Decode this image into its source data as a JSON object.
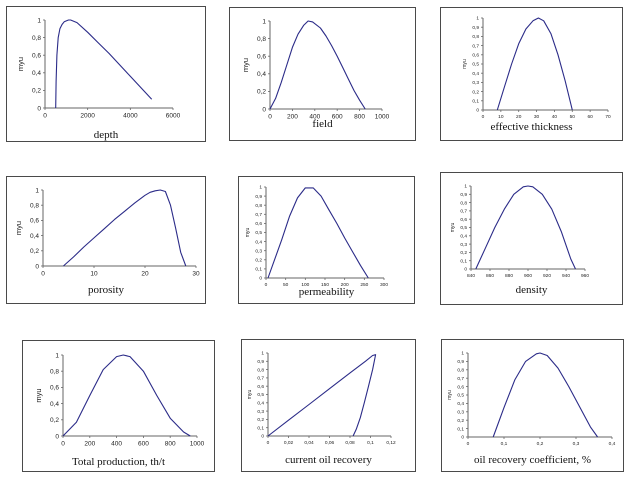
{
  "chart_data": [
    {
      "type": "line",
      "title": "",
      "xlabel": "depth",
      "ylabel": "myu",
      "xlim": [
        0,
        6000
      ],
      "ylim": [
        0,
        1
      ],
      "x_ticks": [
        "0",
        "2000",
        "4000",
        "6000"
      ],
      "y_ticks": [
        "0",
        "0,2",
        "0,4",
        "0,6",
        "0,8",
        "1"
      ],
      "series": [
        {
          "x": [
            500,
            520,
            560,
            620,
            700,
            800,
            900,
            1000,
            1100,
            1200,
            1500,
            2000,
            2500,
            3000,
            3500,
            4000,
            4500,
            5000
          ],
          "y": [
            0,
            0.3,
            0.6,
            0.8,
            0.9,
            0.95,
            0.98,
            0.99,
            1,
            1,
            0.97,
            0.86,
            0.74,
            0.62,
            0.49,
            0.36,
            0.23,
            0.1
          ]
        }
      ]
    },
    {
      "type": "line",
      "title": "",
      "xlabel": "field",
      "ylabel": "myu",
      "xlim": [
        0,
        1000
      ],
      "ylim": [
        0,
        1
      ],
      "x_ticks": [
        "0",
        "200",
        "400",
        "600",
        "800",
        "1000"
      ],
      "y_ticks": [
        "0",
        "0,2",
        "0,4",
        "0,6",
        "0,8",
        "1"
      ],
      "series": [
        {
          "x": [
            0,
            50,
            100,
            150,
            200,
            250,
            300,
            340,
            380,
            450,
            500,
            550,
            600,
            650,
            700,
            750,
            800,
            850
          ],
          "y": [
            0,
            0.12,
            0.3,
            0.5,
            0.7,
            0.85,
            0.95,
            1,
            0.99,
            0.92,
            0.83,
            0.72,
            0.6,
            0.47,
            0.34,
            0.21,
            0.1,
            0
          ]
        }
      ]
    },
    {
      "type": "line",
      "title": "",
      "xlabel": "effective thickness",
      "ylabel": "myu",
      "xlim": [
        0,
        70
      ],
      "ylim": [
        0,
        1
      ],
      "x_ticks": [
        "0",
        "10",
        "20",
        "30",
        "40",
        "50",
        "60",
        "70"
      ],
      "y_ticks": [
        "0",
        "0,1",
        "0,2",
        "0,3",
        "0,4",
        "0,5",
        "0,6",
        "0,7",
        "0,8",
        "0,9",
        "1"
      ],
      "series": [
        {
          "x": [
            8,
            12,
            16,
            20,
            24,
            28,
            31,
            34,
            38,
            42,
            46,
            50
          ],
          "y": [
            0,
            0.25,
            0.5,
            0.72,
            0.88,
            0.97,
            1,
            0.97,
            0.83,
            0.6,
            0.32,
            0
          ]
        }
      ]
    },
    {
      "type": "line",
      "title": "",
      "xlabel": "porosity",
      "ylabel": "myu",
      "xlim": [
        0,
        30
      ],
      "ylim": [
        0,
        1
      ],
      "x_ticks": [
        "0",
        "10",
        "20",
        "30"
      ],
      "y_ticks": [
        "0",
        "0,2",
        "0,4",
        "0,6",
        "0,8",
        "1"
      ],
      "series": [
        {
          "x": [
            4,
            6,
            8,
            10,
            12,
            14,
            16,
            18,
            20,
            21,
            22,
            23,
            24,
            25,
            26,
            27,
            28
          ],
          "y": [
            0,
            0.12,
            0.25,
            0.37,
            0.49,
            0.61,
            0.72,
            0.83,
            0.93,
            0.97,
            0.99,
            1,
            0.98,
            0.8,
            0.5,
            0.18,
            0
          ]
        }
      ]
    },
    {
      "type": "line",
      "title": "",
      "xlabel": "permeability",
      "ylabel": "myu",
      "xlim": [
        0,
        300
      ],
      "ylim": [
        0,
        1
      ],
      "x_ticks": [
        "0",
        "50",
        "100",
        "150",
        "200",
        "250",
        "300"
      ],
      "y_ticks": [
        "0",
        "0,1",
        "0,2",
        "0,3",
        "0,4",
        "0,5",
        "0,6",
        "0,7",
        "0,8",
        "0,9",
        "1"
      ],
      "series": [
        {
          "x": [
            5,
            20,
            40,
            60,
            80,
            100,
            120,
            140,
            160,
            180,
            200,
            220,
            240,
            260
          ],
          "y": [
            0,
            0.18,
            0.42,
            0.68,
            0.88,
            0.99,
            0.99,
            0.9,
            0.75,
            0.6,
            0.44,
            0.29,
            0.14,
            0
          ]
        }
      ]
    },
    {
      "type": "line",
      "title": "",
      "xlabel": "density",
      "ylabel": "myu",
      "xlim": [
        840,
        960
      ],
      "ylim": [
        0,
        1
      ],
      "x_ticks": [
        "840",
        "860",
        "880",
        "900",
        "920",
        "940",
        "960"
      ],
      "y_ticks": [
        "0",
        "0,1",
        "0,2",
        "0,3",
        "0,4",
        "0,5",
        "0,6",
        "0,7",
        "0,8",
        "0,9",
        "1"
      ],
      "series": [
        {
          "x": [
            845,
            855,
            865,
            875,
            885,
            895,
            900,
            905,
            915,
            925,
            935,
            945,
            950
          ],
          "y": [
            0,
            0.25,
            0.5,
            0.72,
            0.9,
            0.99,
            1,
            0.99,
            0.9,
            0.72,
            0.45,
            0.12,
            0
          ]
        }
      ]
    },
    {
      "type": "line",
      "title": "",
      "xlabel": "Total  production, th/t",
      "ylabel": "myu",
      "xlim": [
        0,
        1000
      ],
      "ylim": [
        0,
        1
      ],
      "x_ticks": [
        "0",
        "200",
        "400",
        "600",
        "800",
        "1000"
      ],
      "y_ticks": [
        "0",
        "0,2",
        "0,4",
        "0,6",
        "0,8",
        "1"
      ],
      "series": [
        {
          "x": [
            0,
            100,
            200,
            300,
            400,
            450,
            500,
            600,
            700,
            800,
            900,
            950
          ],
          "y": [
            0,
            0.17,
            0.5,
            0.82,
            0.98,
            1,
            0.98,
            0.8,
            0.5,
            0.22,
            0.05,
            0
          ]
        }
      ]
    },
    {
      "type": "line",
      "title": "",
      "xlabel": "current oil recovery",
      "ylabel": "myu",
      "xlim": [
        0,
        0.12
      ],
      "ylim": [
        0,
        1
      ],
      "x_ticks": [
        "0",
        "0,02",
        "0,04",
        "0,06",
        "0,08",
        "0,1",
        "0,12"
      ],
      "y_ticks": [
        "0",
        "0,1",
        "0,2",
        "0,3",
        "0,4",
        "0,5",
        "0,6",
        "0,7",
        "0,8",
        "0,9",
        "1"
      ],
      "series": [
        {
          "x": [
            0,
            0.02,
            0.04,
            0.06,
            0.08,
            0.095,
            0.102,
            0.105,
            0.102,
            0.098,
            0.094,
            0.09,
            0.086,
            0.083
          ],
          "y": [
            0,
            0.19,
            0.38,
            0.57,
            0.76,
            0.9,
            0.97,
            0.98,
            0.8,
            0.6,
            0.4,
            0.22,
            0.08,
            0
          ]
        }
      ]
    },
    {
      "type": "line",
      "title": "",
      "xlabel": "oil recovery coefficient, %",
      "ylabel": "myu",
      "xlim": [
        0,
        0.4
      ],
      "ylim": [
        0,
        1
      ],
      "x_ticks": [
        "0",
        "0,1",
        "0,2",
        "0,3",
        "0,4"
      ],
      "y_ticks": [
        "0",
        "0,1",
        "0,2",
        "0,3",
        "0,4",
        "0,5",
        "0,6",
        "0,7",
        "0,8",
        "0,9",
        "1"
      ],
      "series": [
        {
          "x": [
            0.07,
            0.1,
            0.13,
            0.16,
            0.19,
            0.2,
            0.22,
            0.25,
            0.28,
            0.31,
            0.34,
            0.36
          ],
          "y": [
            0,
            0.35,
            0.68,
            0.9,
            0.99,
            1,
            0.97,
            0.82,
            0.6,
            0.36,
            0.12,
            0
          ]
        }
      ]
    }
  ],
  "colors": {
    "curve": "#2b2b88",
    "axis": "#666666",
    "frame": "#4a4a4a"
  }
}
